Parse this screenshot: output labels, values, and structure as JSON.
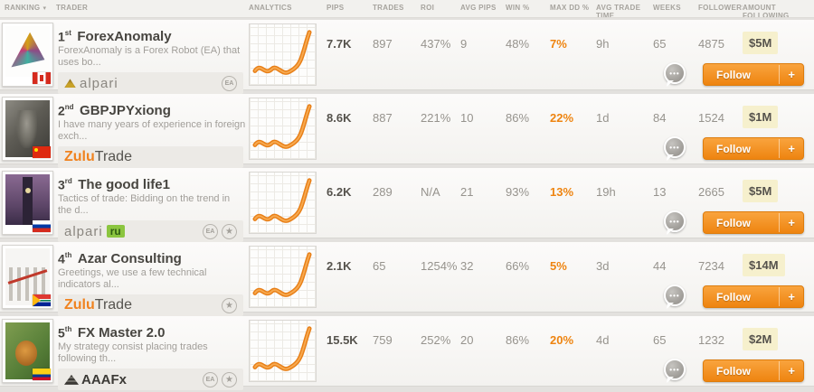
{
  "colors": {
    "accent_orange": "#ee8410",
    "highlight_yellow": "#f6f0cd",
    "zulu_green": "#8bc53f"
  },
  "icons": {
    "sort_desc": "▾",
    "plus": "+",
    "ellipsis": "•••",
    "star": "★",
    "ea": "EA"
  },
  "header": {
    "columns": [
      "RANKING",
      "TRADER",
      "ANALYTICS",
      "PIPS",
      "TRADES",
      "ROI",
      "AVG PIPS",
      "WIN %",
      "MAX DD %",
      "AVG TRADE TIME",
      "WEEKS",
      "FOLLOWERS",
      "AMOUNT FOLLOWING"
    ]
  },
  "rows": [
    {
      "rank": "1",
      "rank_suffix": "st",
      "name": "ForexAnomaly",
      "description": "ForexAnomaly is a Forex Robot (EA) that uses bo...",
      "flag": "canada",
      "broker": {
        "name": "alpari",
        "icon": "alpari-emblem",
        "parts": [
          {
            "text": "alpari",
            "style": "alpari"
          }
        ]
      },
      "badges": [
        "ea"
      ],
      "stats": {
        "pips": "7.7K",
        "trades": "897",
        "roi": "437%",
        "avg_pips": "9",
        "win": "48%",
        "max_dd": "7%",
        "avg_trade_time": "9h",
        "weeks": "65",
        "followers": "4875",
        "amount": "$5M"
      },
      "follow_label": "Follow"
    },
    {
      "rank": "2",
      "rank_suffix": "nd",
      "name": "GBPJPYxiong",
      "description": "I have many years of experience in foreign exch...",
      "flag": "china",
      "broker": {
        "name": "ZuluTrade",
        "parts": [
          {
            "text": "Zulu",
            "style": "zulu"
          },
          {
            "text": "Trade",
            "style": "trade"
          }
        ]
      },
      "badges": [],
      "stats": {
        "pips": "8.6K",
        "trades": "887",
        "roi": "221%",
        "avg_pips": "10",
        "win": "86%",
        "max_dd": "22%",
        "avg_trade_time": "1d",
        "weeks": "84",
        "followers": "1524",
        "amount": "$1M"
      },
      "follow_label": "Follow"
    },
    {
      "rank": "3",
      "rank_suffix": "rd",
      "name": "The good life1",
      "description": "Tactics of trade: Bidding on the trend in the d...",
      "flag": "russia",
      "broker": {
        "name": "alpari ru",
        "parts": [
          {
            "text": "alpari",
            "style": "alpari"
          },
          {
            "text": "ru",
            "style": "ru-box"
          }
        ]
      },
      "badges": [
        "ea",
        "star"
      ],
      "stats": {
        "pips": "6.2K",
        "trades": "289",
        "roi": "N/A",
        "avg_pips": "21",
        "win": "93%",
        "max_dd": "13%",
        "avg_trade_time": "19h",
        "weeks": "13",
        "followers": "2665",
        "amount": "$5M"
      },
      "follow_label": "Follow"
    },
    {
      "rank": "4",
      "rank_suffix": "th",
      "name": "Azar Consulting",
      "description": "Greetings, we use a few technical indicators al...",
      "flag": "south-africa",
      "broker": {
        "name": "ZuluTrade",
        "parts": [
          {
            "text": "Zulu",
            "style": "zulu"
          },
          {
            "text": "Trade",
            "style": "trade"
          }
        ]
      },
      "badges": [
        "star"
      ],
      "stats": {
        "pips": "2.1K",
        "trades": "65",
        "roi": "1254%",
        "avg_pips": "32",
        "win": "66%",
        "max_dd": "5%",
        "avg_trade_time": "3d",
        "weeks": "44",
        "followers": "7234",
        "amount": "$14M"
      },
      "follow_label": "Follow"
    },
    {
      "rank": "5",
      "rank_suffix": "th",
      "name": "FX Master 2.0",
      "description": "My strategy consist placing trades following th...",
      "flag": "colombia",
      "broker": {
        "name": "AAAFx",
        "icon": "aaafx",
        "parts": [
          {
            "text": "AAAFx",
            "style": "aaafx"
          }
        ]
      },
      "badges": [
        "ea",
        "star"
      ],
      "stats": {
        "pips": "15.5K",
        "trades": "759",
        "roi": "252%",
        "avg_pips": "20",
        "win": "86%",
        "max_dd": "20%",
        "avg_trade_time": "4d",
        "weeks": "65",
        "followers": "1232",
        "amount": "$2M"
      },
      "follow_label": "Follow"
    }
  ]
}
